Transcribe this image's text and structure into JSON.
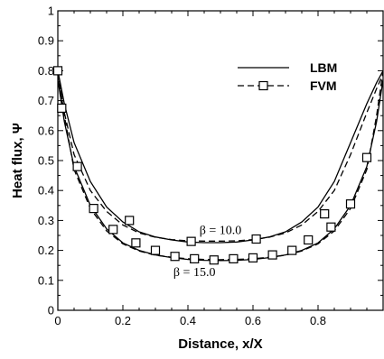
{
  "chart_data": {
    "type": "line",
    "xlabel": "Distance, x/X",
    "ylabel": "Heat flux, Ψ",
    "xlim": [
      0,
      1
    ],
    "ylim": [
      0,
      1
    ],
    "xticks": [
      "0",
      "0.2",
      "0.4",
      "0.6",
      "0.8"
    ],
    "xtick_values": [
      0,
      0.2,
      0.4,
      0.6,
      0.8
    ],
    "yticks": [
      "0",
      "0.1",
      "0.2",
      "0.3",
      "0.4",
      "0.5",
      "0.6",
      "0.7",
      "0.8",
      "0.9",
      "1"
    ],
    "ytick_values": [
      0,
      0.1,
      0.2,
      0.3,
      0.4,
      0.5,
      0.6,
      0.7,
      0.8,
      0.9,
      1.0
    ],
    "legend_position": "top-right",
    "legend": [
      {
        "label": "LBM",
        "style": "solid"
      },
      {
        "label": "FVM",
        "style": "dashed-square-markers"
      }
    ],
    "series": [
      {
        "name": "LBM",
        "curve_label": "β = 10.0",
        "style": "solid",
        "x": [
          0.0,
          0.02,
          0.05,
          0.1,
          0.15,
          0.2,
          0.25,
          0.3,
          0.35,
          0.4,
          0.45,
          0.5,
          0.55,
          0.6,
          0.65,
          0.7,
          0.75,
          0.8,
          0.85,
          0.9,
          0.95,
          0.98,
          1.0
        ],
        "values": [
          0.8,
          0.69,
          0.56,
          0.43,
          0.345,
          0.295,
          0.262,
          0.245,
          0.235,
          0.228,
          0.226,
          0.226,
          0.228,
          0.235,
          0.245,
          0.262,
          0.295,
          0.345,
          0.43,
          0.56,
          0.69,
          0.76,
          0.8
        ]
      },
      {
        "name": "FVM",
        "curve_label": "β = 10.0",
        "style": "dashed",
        "x": [
          0.0,
          0.02,
          0.05,
          0.1,
          0.15,
          0.2,
          0.25,
          0.3,
          0.35,
          0.4,
          0.45,
          0.5,
          0.55,
          0.6,
          0.65,
          0.7,
          0.75,
          0.8,
          0.85,
          0.9,
          0.95,
          0.98,
          1.0
        ],
        "values": [
          0.79,
          0.66,
          0.52,
          0.4,
          0.33,
          0.285,
          0.258,
          0.244,
          0.236,
          0.232,
          0.231,
          0.231,
          0.232,
          0.236,
          0.244,
          0.258,
          0.285,
          0.33,
          0.4,
          0.52,
          0.66,
          0.74,
          0.79
        ]
      },
      {
        "name": "LBM",
        "curve_label": "β = 15.0",
        "style": "solid",
        "x": [
          0.0,
          0.02,
          0.05,
          0.1,
          0.15,
          0.2,
          0.25,
          0.3,
          0.35,
          0.4,
          0.45,
          0.5,
          0.55,
          0.6,
          0.65,
          0.7,
          0.75,
          0.8,
          0.85,
          0.9,
          0.95,
          0.98,
          1.0
        ],
        "values": [
          0.77,
          0.63,
          0.48,
          0.35,
          0.272,
          0.225,
          0.2,
          0.185,
          0.176,
          0.17,
          0.167,
          0.166,
          0.167,
          0.17,
          0.176,
          0.185,
          0.2,
          0.225,
          0.272,
          0.35,
          0.48,
          0.63,
          0.77
        ]
      },
      {
        "name": "FVM",
        "curve_label": "β = 15.0",
        "style": "dashed",
        "x": [
          0.0,
          0.02,
          0.05,
          0.1,
          0.15,
          0.2,
          0.25,
          0.3,
          0.35,
          0.4,
          0.45,
          0.5,
          0.55,
          0.6,
          0.65,
          0.7,
          0.75,
          0.8,
          0.85,
          0.9,
          0.95,
          0.98,
          1.0
        ],
        "values": [
          0.8,
          0.65,
          0.47,
          0.34,
          0.265,
          0.222,
          0.198,
          0.184,
          0.177,
          0.172,
          0.17,
          0.169,
          0.17,
          0.172,
          0.177,
          0.184,
          0.198,
          0.222,
          0.265,
          0.34,
          0.47,
          0.65,
          0.8
        ]
      }
    ],
    "markers": {
      "series": "FVM",
      "points": [
        {
          "x": 0.0,
          "y": 0.8
        },
        {
          "x": 0.012,
          "y": 0.675
        },
        {
          "x": 0.06,
          "y": 0.48
        },
        {
          "x": 0.11,
          "y": 0.34
        },
        {
          "x": 0.17,
          "y": 0.27
        },
        {
          "x": 0.22,
          "y": 0.3
        },
        {
          "x": 0.24,
          "y": 0.225
        },
        {
          "x": 0.3,
          "y": 0.2
        },
        {
          "x": 0.36,
          "y": 0.18
        },
        {
          "x": 0.41,
          "y": 0.23
        },
        {
          "x": 0.42,
          "y": 0.172
        },
        {
          "x": 0.48,
          "y": 0.168
        },
        {
          "x": 0.54,
          "y": 0.172
        },
        {
          "x": 0.61,
          "y": 0.238
        },
        {
          "x": 0.6,
          "y": 0.175
        },
        {
          "x": 0.66,
          "y": 0.185
        },
        {
          "x": 0.72,
          "y": 0.2
        },
        {
          "x": 0.77,
          "y": 0.235
        },
        {
          "x": 0.82,
          "y": 0.322
        },
        {
          "x": 0.84,
          "y": 0.278
        },
        {
          "x": 0.9,
          "y": 0.355
        },
        {
          "x": 0.95,
          "y": 0.51
        }
      ]
    },
    "annotations": [
      "β = 10.0",
      "β = 15.0"
    ]
  }
}
